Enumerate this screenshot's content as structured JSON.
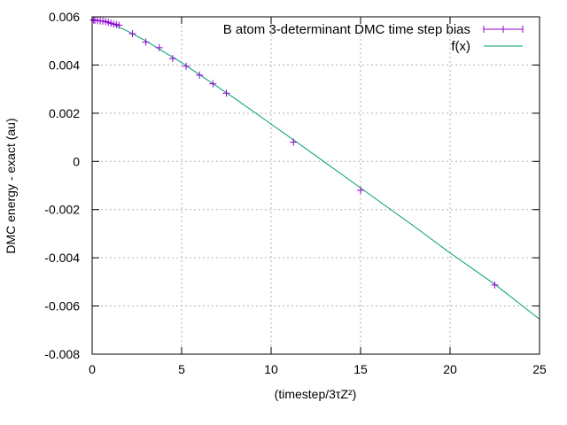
{
  "chart_data": {
    "type": "scatter",
    "title": "",
    "xlabel": "(timestep/3τZ²)",
    "ylabel": "DMC energy - exact (au)",
    "xlim": [
      0,
      25
    ],
    "ylim": [
      -0.008,
      0.006
    ],
    "x_ticks": [
      0,
      5,
      10,
      15,
      20,
      25
    ],
    "y_ticks": [
      -0.008,
      -0.006,
      -0.004,
      -0.002,
      0,
      0.002,
      0.004,
      0.006
    ],
    "x_tick_labels": [
      "0",
      "5",
      "10",
      "15",
      "20",
      "25"
    ],
    "y_tick_labels": [
      "-0.008",
      "-0.006",
      "-0.004",
      "-0.002",
      "0",
      "0.002",
      "0.004",
      "0.006"
    ],
    "grid": true,
    "legend_position": "top-right",
    "series": [
      {
        "name": "B atom 3-determinant DMC time step bias",
        "kind": "points-with-errorbars",
        "color": "#9400d3",
        "points": [
          {
            "x": 0.08,
            "y": 0.00587
          },
          {
            "x": 0.15,
            "y": 0.00585
          },
          {
            "x": 0.3,
            "y": 0.00584
          },
          {
            "x": 0.45,
            "y": 0.00583
          },
          {
            "x": 0.6,
            "y": 0.00582
          },
          {
            "x": 0.75,
            "y": 0.0058
          },
          {
            "x": 0.9,
            "y": 0.00577
          },
          {
            "x": 1.05,
            "y": 0.00573
          },
          {
            "x": 1.2,
            "y": 0.0057
          },
          {
            "x": 1.35,
            "y": 0.00568
          },
          {
            "x": 1.5,
            "y": 0.00565
          },
          {
            "x": 2.25,
            "y": 0.0053
          },
          {
            "x": 3.0,
            "y": 0.00495
          },
          {
            "x": 3.75,
            "y": 0.00472
          },
          {
            "x": 4.5,
            "y": 0.00427
          },
          {
            "x": 5.25,
            "y": 0.00395
          },
          {
            "x": 6.0,
            "y": 0.00358
          },
          {
            "x": 6.75,
            "y": 0.00322
          },
          {
            "x": 7.5,
            "y": 0.00283
          },
          {
            "x": 11.25,
            "y": 0.0008
          },
          {
            "x": 15.0,
            "y": -0.0012
          },
          {
            "x": 22.5,
            "y": -0.00513
          }
        ]
      },
      {
        "name": "f(x)",
        "kind": "line",
        "color": "#009e73",
        "points": [
          {
            "x": 0,
            "y": 0.0059
          },
          {
            "x": 1,
            "y": 0.00575
          },
          {
            "x": 2,
            "y": 0.0054
          },
          {
            "x": 3,
            "y": 0.005
          },
          {
            "x": 4,
            "y": 0.00455
          },
          {
            "x": 5,
            "y": 0.0041
          },
          {
            "x": 6,
            "y": 0.0036
          },
          {
            "x": 7,
            "y": 0.0031
          },
          {
            "x": 8,
            "y": 0.0026
          },
          {
            "x": 10,
            "y": 0.00155
          },
          {
            "x": 12,
            "y": 0.0005
          },
          {
            "x": 15,
            "y": -0.0011
          },
          {
            "x": 18,
            "y": -0.0027
          },
          {
            "x": 20,
            "y": -0.0038
          },
          {
            "x": 22.5,
            "y": -0.0051
          },
          {
            "x": 25,
            "y": -0.00655
          }
        ]
      }
    ]
  }
}
